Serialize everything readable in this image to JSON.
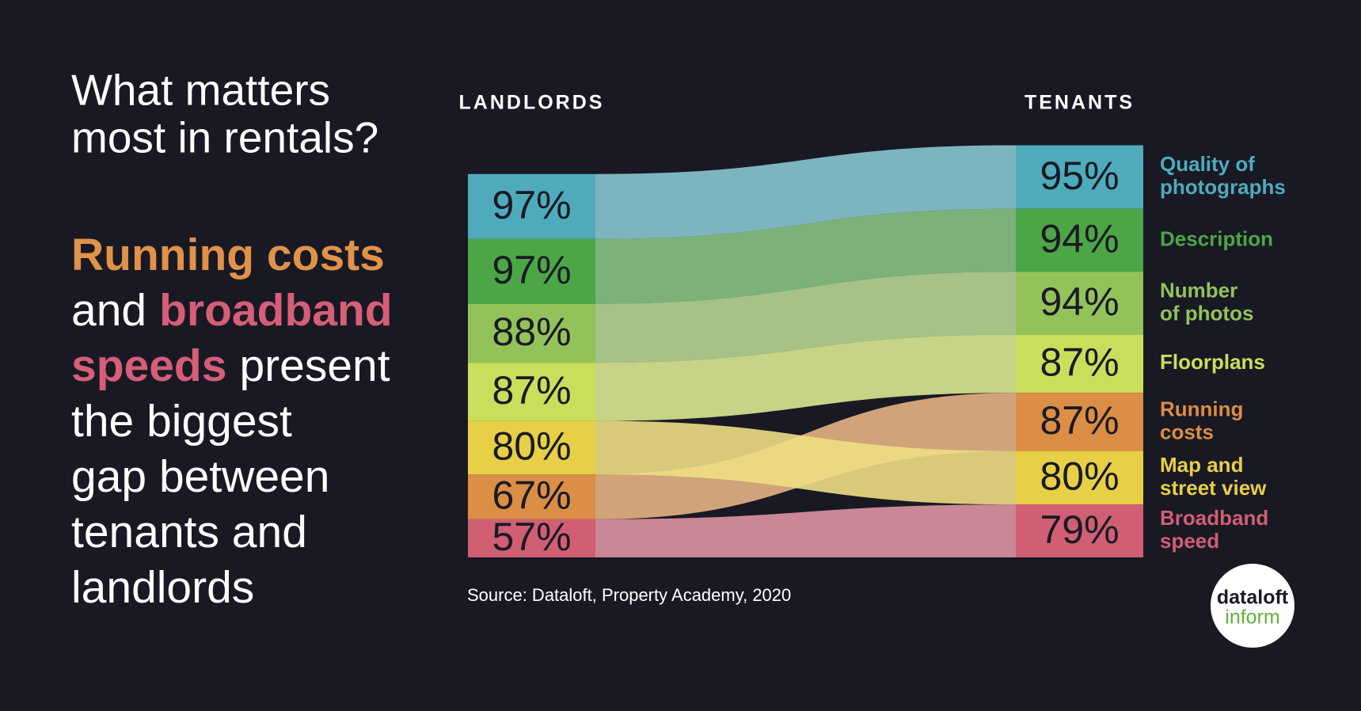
{
  "header": {
    "title": [
      "What matters",
      "most in rentals?"
    ],
    "headline": [
      [
        {
          "text": "Running costs",
          "color": "#e0924a"
        }
      ],
      [
        {
          "text": "and",
          "color": "#ffffff"
        },
        {
          "text": "broadband",
          "color": "#d65e78"
        }
      ],
      [
        {
          "text": "speeds",
          "color": "#d65e78"
        },
        {
          "text": "present",
          "color": "#ffffff"
        }
      ],
      [
        {
          "text": "the biggest",
          "color": "#ffffff"
        }
      ],
      [
        {
          "text": "gap between",
          "color": "#ffffff"
        }
      ],
      [
        {
          "text": "tenants and",
          "color": "#ffffff"
        }
      ],
      [
        {
          "text": "landlords",
          "color": "#ffffff"
        }
      ]
    ]
  },
  "chart_data": {
    "type": "slope",
    "categories": [
      [
        "Quality of",
        "photographs"
      ],
      [
        "Description"
      ],
      [
        "Number",
        "of photos"
      ],
      [
        "Floorplans"
      ],
      [
        "Running",
        "costs"
      ],
      [
        "Map and",
        "street view"
      ],
      [
        "Broadband",
        "speed"
      ]
    ],
    "colors": [
      "#4fabbb",
      "#4ca646",
      "#93c25b",
      "#cade5b",
      "#da8e46",
      "#e7cf46",
      "#d05f74"
    ],
    "series": [
      {
        "name": "LANDLORDS",
        "values": [
          97,
          97,
          88,
          87,
          67,
          80,
          57
        ],
        "value_labels": [
          "97%",
          "97%",
          "88%",
          "87%",
          "67%",
          "80%",
          "57%"
        ]
      },
      {
        "name": "TENANTS",
        "values": [
          95,
          94,
          94,
          87,
          87,
          80,
          79
        ],
        "value_labels": [
          "95%",
          "94%",
          "94%",
          "87%",
          "87%",
          "80%",
          "79%"
        ]
      }
    ]
  },
  "source": "Source: Dataloft, Property Academy, 2020",
  "logo": {
    "line1": "dataloft",
    "line2": "inform"
  }
}
